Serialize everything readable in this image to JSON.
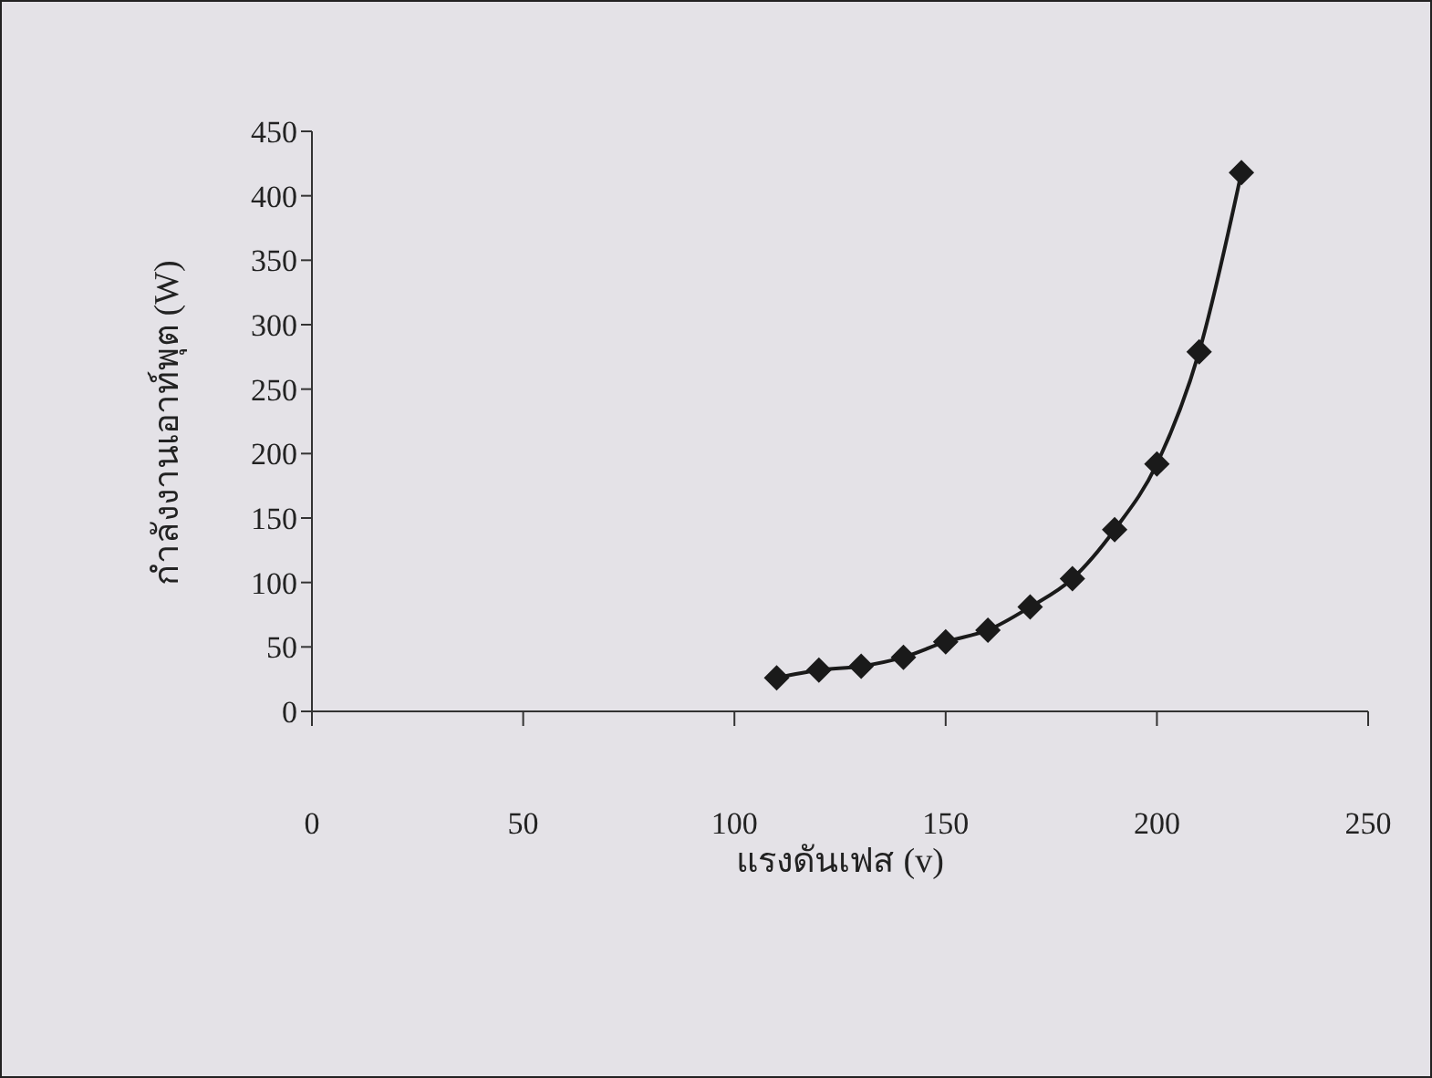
{
  "chart_data": {
    "type": "line",
    "xlabel": "แรงดันเฟส (v)",
    "ylabel": "กำลังงานเอาท์พุต (W)",
    "x": [
      110,
      120,
      130,
      140,
      150,
      160,
      170,
      180,
      190,
      200,
      210,
      220
    ],
    "series": [
      {
        "color": "#1a1a1a",
        "values": [
          26,
          32,
          35,
          42,
          54,
          63,
          81,
          103,
          141,
          192,
          279,
          418
        ]
      }
    ],
    "xlim": [
      0,
      250
    ],
    "xticks": [
      0,
      50,
      100,
      150,
      200,
      250
    ],
    "ylim": [
      0,
      450
    ],
    "yticks": [
      0,
      50,
      100,
      150,
      200,
      250,
      300,
      350,
      400,
      450
    ],
    "marker": "diamond",
    "line_style": "solid",
    "grid": false,
    "legend": false
  }
}
